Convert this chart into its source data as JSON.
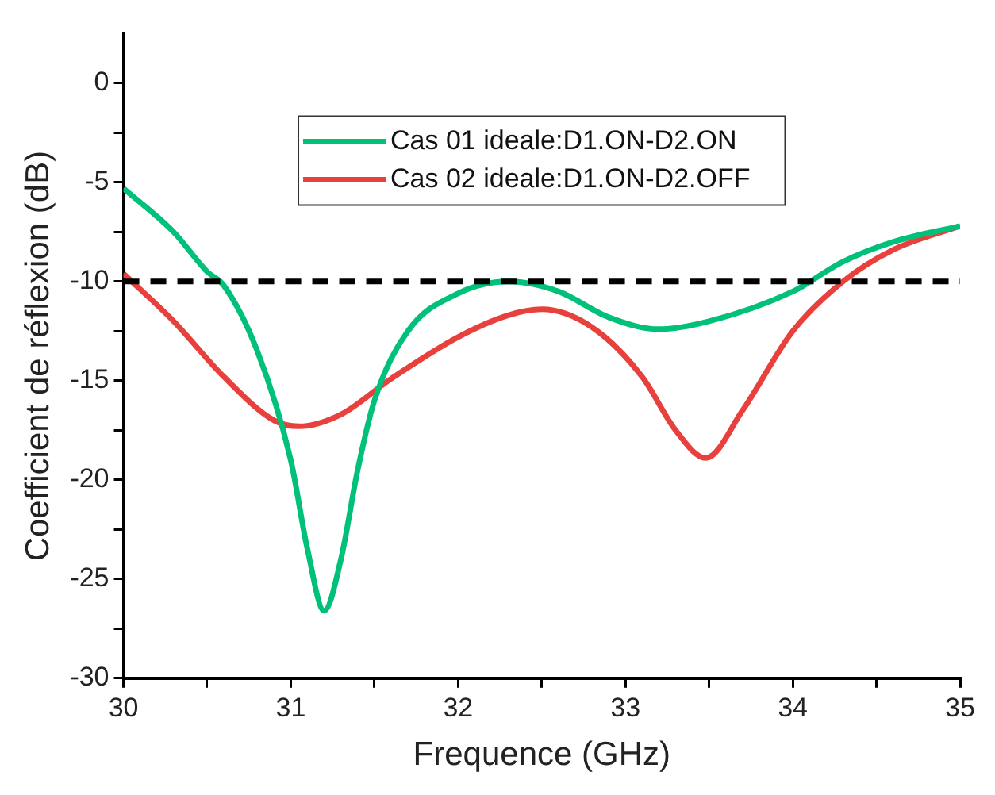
{
  "chart_data": {
    "type": "line",
    "xlabel": "Frequence (GHz)",
    "ylabel": "Coefficient de réflexion (dB)",
    "xlim": [
      30,
      35
    ],
    "xticks": [
      30,
      {
        "value": 30.5,
        "label": null
      },
      31,
      {
        "value": 31.5,
        "label": null
      },
      32,
      {
        "value": 32.5,
        "label": null
      },
      33,
      {
        "value": 33.5,
        "label": null
      },
      34,
      {
        "value": 34.5,
        "label": null
      },
      35
    ],
    "ylim": [
      -30,
      2.5
    ],
    "yticks": [
      -30,
      {
        "value": -27.5,
        "label": null
      },
      -25,
      {
        "value": -22.5,
        "label": null
      },
      -20,
      {
        "value": -17.5,
        "label": null
      },
      -15,
      {
        "value": -12.5,
        "label": null
      },
      -10,
      {
        "value": -7.5,
        "label": null
      },
      -5,
      {
        "value": -2.5,
        "label": null
      },
      0
    ],
    "grid": false,
    "legend": "top",
    "marker": "none",
    "line_style": "solid",
    "ref_lines": [
      {
        "axis": "y",
        "value": -10,
        "label": null,
        "color": "#000000",
        "line_style": "dashed"
      }
    ],
    "series": [
      {
        "name": "Cas 01 ideale:D1.ON-D2.ON",
        "color": "#00c07a",
        "x": [
          30,
          30.3,
          30.5,
          30.6,
          30.8,
          31.0,
          31.1,
          31.2,
          31.3,
          31.4,
          31.5,
          31.7,
          32.0,
          32.3,
          32.6,
          32.9,
          33.2,
          33.5,
          34.0,
          34.3,
          34.6,
          35
        ],
        "values": [
          -5.3,
          -7.5,
          -9.5,
          -10.2,
          -13.5,
          -19,
          -23.5,
          -26.6,
          -24,
          -19.5,
          -16,
          -12.5,
          -10.6,
          -10,
          -10.5,
          -11.8,
          -12.4,
          -12,
          -10.5,
          -9,
          -8,
          -7.2
        ]
      },
      {
        "name": "Cas 02 ideale:D1.ON-D2.OFF",
        "color": "#e8403c",
        "x": [
          30,
          30.3,
          30.6,
          30.9,
          31.05,
          31.3,
          31.6,
          32.0,
          32.3,
          32.5,
          32.8,
          33.1,
          33.3,
          33.48,
          33.7,
          34.0,
          34.3,
          34.6,
          35
        ],
        "values": [
          -9.6,
          -12,
          -14.8,
          -17,
          -17.3,
          -16.7,
          -14.9,
          -12.8,
          -11.7,
          -11.4,
          -12.3,
          -14.8,
          -17.5,
          -18.9,
          -16.5,
          -12.5,
          -10,
          -8.4,
          -7.2
        ]
      }
    ]
  }
}
